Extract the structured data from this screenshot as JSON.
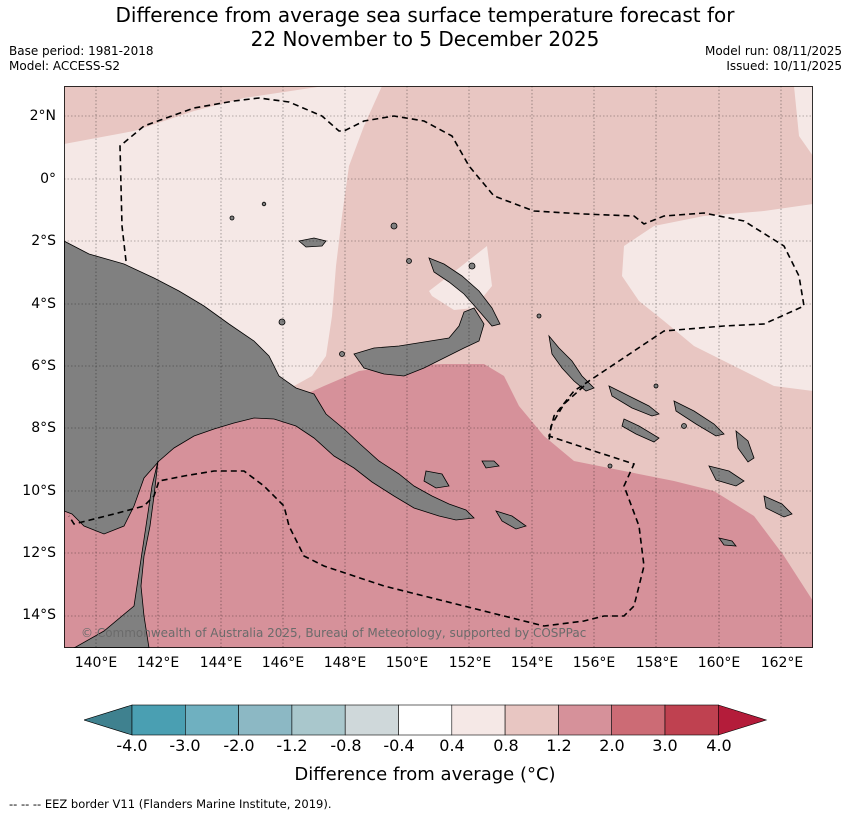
{
  "title_line1": "Difference from average sea surface temperature forecast for",
  "title_line2": "22 November to 5 December 2025",
  "base_period": "Base period: 1981-2018",
  "model": "Model: ACCESS-S2",
  "model_run": "Model run: 08/11/2025",
  "issued": "Issued: 10/11/2025",
  "copyright": "© Commonwealth of Australia 2025, Bureau of Meteorology, supported by COSPPac",
  "lat_labels": [
    "2°N",
    "0°",
    "2°S",
    "4°S",
    "6°S",
    "8°S",
    "10°S",
    "12°S",
    "14°S"
  ],
  "lon_labels": [
    "140°E",
    "142°E",
    "144°E",
    "146°E",
    "148°E",
    "150°E",
    "152°E",
    "154°E",
    "156°E",
    "158°E",
    "160°E",
    "162°E"
  ],
  "colorbar": {
    "labels": [
      "-4.0",
      "-3.0",
      "-2.0",
      "-1.2",
      "-0.8",
      "-0.4",
      "0.4",
      "0.8",
      "1.2",
      "2.0",
      "3.0",
      "4.0"
    ],
    "colors": [
      "#3f818f",
      "#4a9fb2",
      "#6fb0c0",
      "#8cb8c4",
      "#a9c7cc",
      "#cfd8da",
      "#ffffff",
      "#f5e8e6",
      "#e8c6c2",
      "#d6919a",
      "#cc6b75",
      "#bf4150",
      "#b41c3a"
    ],
    "title": "Difference from average (°C)"
  },
  "footer": "--  --  -- EEZ border V11 (Flanders Marine Institute, 2019).",
  "palette": {
    "land": "#808080",
    "class_0_4_0_8": "#f5e8e6",
    "class_0_8_1_2": "#e8c6c2",
    "class_1_2_2_0": "#d6919a"
  }
}
